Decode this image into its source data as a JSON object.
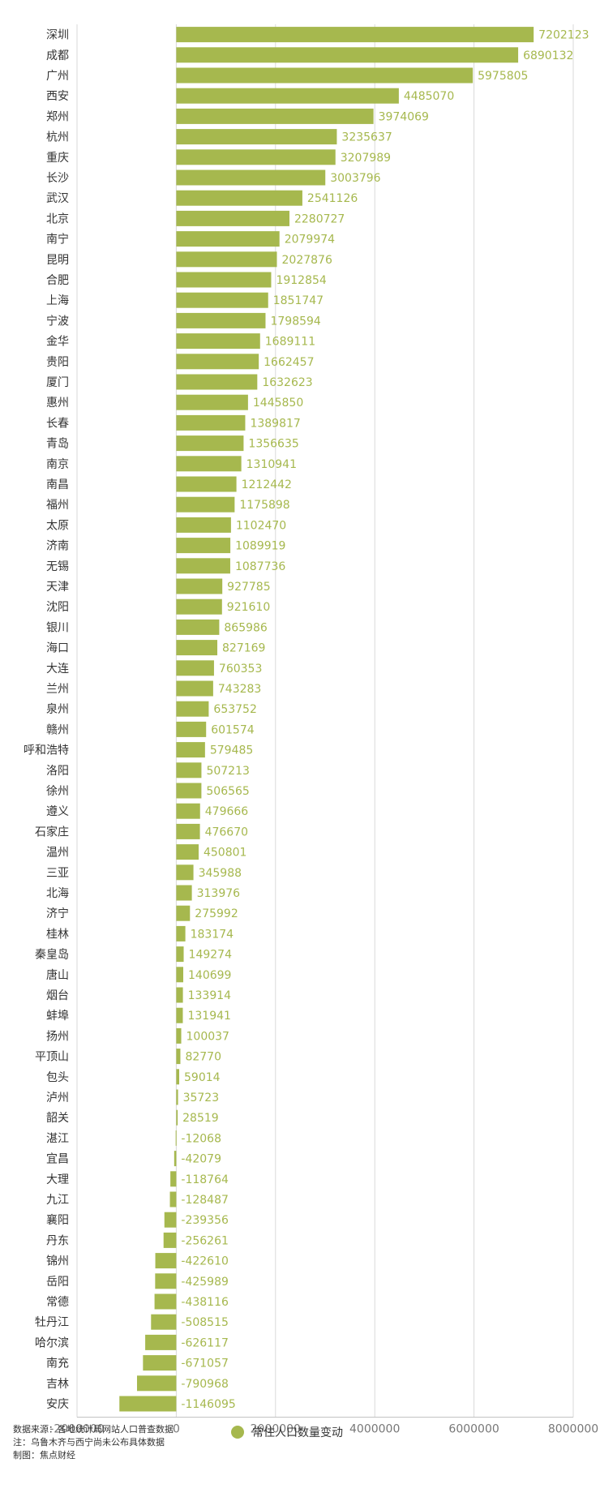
{
  "chart_data": {
    "type": "bar",
    "orientation": "horizontal",
    "categories": [
      "深圳",
      "成都",
      "广州",
      "西安",
      "郑州",
      "杭州",
      "重庆",
      "长沙",
      "武汉",
      "北京",
      "南宁",
      "昆明",
      "合肥",
      "上海",
      "宁波",
      "金华",
      "贵阳",
      "厦门",
      "惠州",
      "长春",
      "青岛",
      "南京",
      "南昌",
      "福州",
      "太原",
      "济南",
      "无锡",
      "天津",
      "沈阳",
      "银川",
      "海口",
      "大连",
      "兰州",
      "泉州",
      "赣州",
      "呼和浩特",
      "洛阳",
      "徐州",
      "遵义",
      "石家庄",
      "温州",
      "三亚",
      "北海",
      "济宁",
      "桂林",
      "秦皇岛",
      "唐山",
      "烟台",
      "蚌埠",
      "扬州",
      "平顶山",
      "包头",
      "泸州",
      "韶关",
      "湛江",
      "宜昌",
      "大理",
      "九江",
      "襄阳",
      "丹东",
      "锦州",
      "岳阳",
      "常德",
      "牡丹江",
      "哈尔滨",
      "南充",
      "吉林",
      "安庆"
    ],
    "values": [
      7202123,
      6890132,
      5975805,
      4485070,
      3974069,
      3235637,
      3207989,
      3003796,
      2541126,
      2280727,
      2079974,
      2027876,
      1912854,
      1851747,
      1798594,
      1689111,
      1662457,
      1632623,
      1445850,
      1389817,
      1356635,
      1310941,
      1212442,
      1175898,
      1102470,
      1089919,
      1087736,
      927785,
      921610,
      865986,
      827169,
      760353,
      743283,
      653752,
      601574,
      579485,
      507213,
      506565,
      479666,
      476670,
      450801,
      345988,
      313976,
      275992,
      183174,
      149274,
      140699,
      133914,
      131941,
      100037,
      82770,
      59014,
      35723,
      28519,
      -12068,
      -42079,
      -118764,
      -128487,
      -239356,
      -256261,
      -422610,
      -425989,
      -438116,
      -508515,
      -626117,
      -671057,
      -790968,
      -1146095
    ],
    "value_labels": [
      "7202123",
      "6890132",
      "5975805",
      "4485070",
      "3974069",
      "3235637",
      "3207989",
      "3003796",
      "2541126",
      "2280727",
      "2079974",
      "2027876",
      "1912854",
      "1851747",
      "1798594",
      "1689111",
      "1662457",
      "1632623",
      "1445850",
      "1389817",
      "1356635",
      "1310941",
      "1212442",
      "1175898",
      "1102470",
      "1089919",
      "1087736",
      "927785",
      "921610",
      "865986",
      "827169",
      "760353",
      "743283",
      "653752",
      "601574",
      "579485",
      "507213",
      "506565",
      "479666",
      "476670",
      "450801",
      "345988",
      "313976",
      "275992",
      "183174",
      "149274",
      "140699",
      "133914",
      "131941",
      "100037",
      "82770",
      "59014",
      "35723",
      "28519",
      "-12068",
      "-42079",
      "-118764",
      "-128487",
      "-239356",
      "-256261",
      "-422610",
      "-425989",
      "-438116",
      "-508515",
      "-626117",
      "-671057",
      "-790968",
      "-1146095"
    ],
    "xlim": [
      -2000000,
      8000000
    ],
    "xticks": [
      -2000000,
      0,
      2000000,
      4000000,
      6000000,
      8000000
    ],
    "xtick_labels": [
      "-2000000",
      "0",
      "2000000",
      "4000000",
      "6000000",
      "8000000"
    ],
    "grid": true,
    "series": [
      {
        "name": "常住人口数量变动",
        "color": "#a6b84e"
      }
    ],
    "legend_position": "bottom",
    "colors": {
      "bar": "#a6b84e",
      "label": "#a6b84e",
      "grid": "#d9d9d9",
      "axis": "#bfbfbf"
    }
  },
  "footer": {
    "source": "数据来源：各地统计局网站人口普查数据",
    "note": "注：乌鲁木齐与西宁尚未公布具体数据",
    "made_by": "制图：焦点财经"
  }
}
